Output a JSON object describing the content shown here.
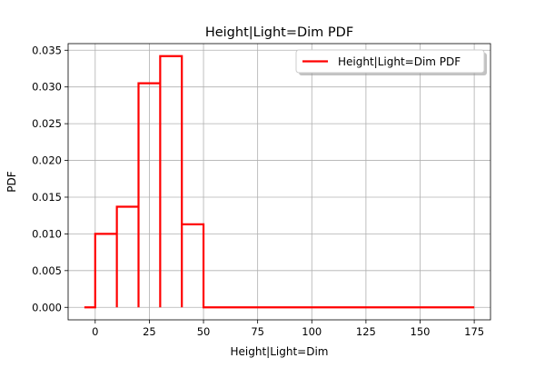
{
  "chart_data": {
    "type": "line",
    "title": "Height|Light=Dim PDF",
    "xlabel": "Height|Light=Dim",
    "ylabel": "PDF",
    "xlim": [
      -12.5,
      182.5
    ],
    "ylim": [
      -0.0017,
      0.0359
    ],
    "xticks": [
      0,
      25,
      50,
      75,
      100,
      125,
      150,
      175
    ],
    "yticks": [
      0.0,
      0.005,
      0.01,
      0.015,
      0.02,
      0.025,
      0.03,
      0.035
    ],
    "ytick_labels": [
      "0.000",
      "0.005",
      "0.010",
      "0.015",
      "0.020",
      "0.025",
      "0.030",
      "0.035"
    ],
    "grid": true,
    "legend_position": "top-right",
    "series": [
      {
        "name": "Height|Light=Dim PDF",
        "color": "#ff0000",
        "x": [
          -5,
          0,
          0,
          10,
          10,
          10,
          10,
          20,
          20,
          20,
          20,
          30,
          30,
          30,
          30,
          40,
          40,
          40,
          40,
          50,
          50,
          175
        ],
        "y": [
          0,
          0,
          0.01,
          0.01,
          0,
          0,
          0.0137,
          0.0137,
          0,
          0,
          0.0305,
          0.0305,
          0,
          0,
          0.0342,
          0.0342,
          0,
          0,
          0.0113,
          0.0113,
          0,
          0
        ]
      }
    ]
  }
}
